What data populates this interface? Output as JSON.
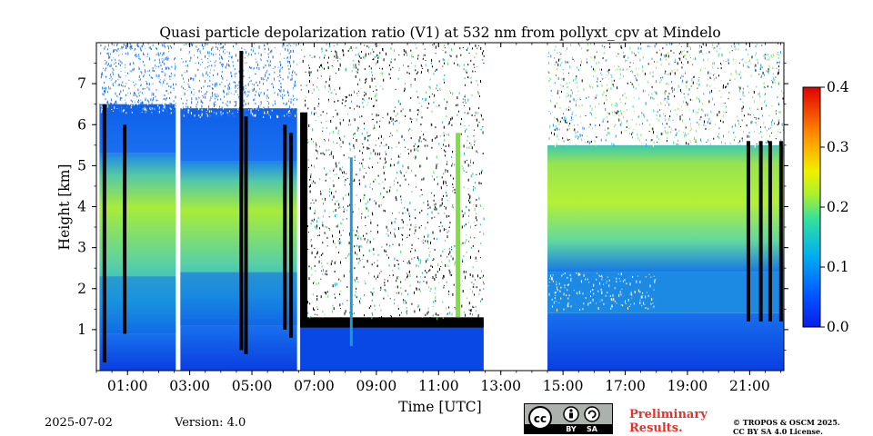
{
  "chart_data": {
    "type": "heatmap",
    "title": "Quasi particle depolarization ratio (V1) at 532 nm from pollyxt_cpv at Mindelo",
    "xlabel": "Time [UTC]",
    "ylabel": "Height [km]",
    "xlim": [
      0.0,
      22.1
    ],
    "ylim": [
      0.0,
      8.0
    ],
    "x_ticks": [
      "01:00",
      "03:00",
      "05:00",
      "07:00",
      "09:00",
      "11:00",
      "13:00",
      "15:00",
      "17:00",
      "19:00",
      "21:00"
    ],
    "y_ticks": [
      "1",
      "2",
      "3",
      "4",
      "5",
      "6",
      "7"
    ],
    "colorbar": {
      "min": 0.0,
      "max": 0.4,
      "ticks": [
        "0.0",
        "0.1",
        "0.2",
        "0.3",
        "0.4"
      ],
      "colormap": "jet"
    },
    "data_gaps_hours": [
      [
        2.55,
        2.7
      ],
      [
        6.45,
        6.55
      ],
      [
        12.45,
        14.5
      ]
    ],
    "layers": [
      {
        "start": 0.1,
        "end": 6.4,
        "bottom_km": 0.9,
        "top_km": 5.2,
        "value": 0.18
      },
      {
        "start": 6.55,
        "end": 12.45,
        "bottom_km": 0.0,
        "top_km": 1.2,
        "value": 0.02
      },
      {
        "start": 14.5,
        "end": 22.1,
        "bottom_km": 2.2,
        "top_km": 5.5,
        "value": 0.2
      },
      {
        "start": 14.5,
        "end": 22.1,
        "bottom_km": 0.0,
        "top_km": 1.4,
        "value": 0.03
      }
    ]
  },
  "footer": {
    "date": "2025-07-02",
    "version": "Version: 4.0",
    "preliminary_line1": "Preliminary",
    "preliminary_line2": "Results.",
    "copyright_line1": "© TROPOS & OSCM 2025.",
    "copyright_line2": "CC BY SA 4.0 License.",
    "license_badge": {
      "left": "cc",
      "by": "BY",
      "sa": "SA"
    }
  }
}
